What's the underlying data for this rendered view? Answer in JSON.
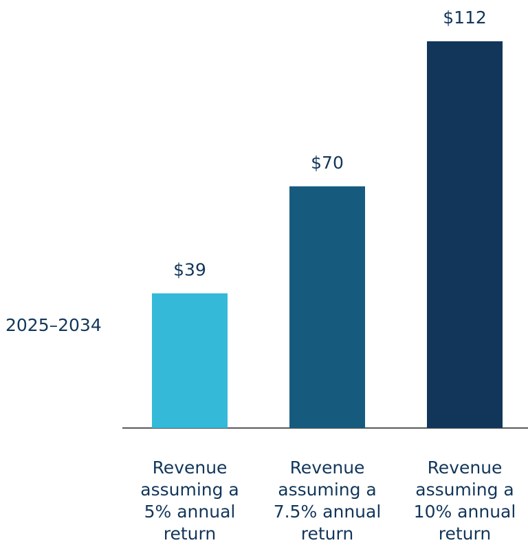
{
  "chart_data": {
    "type": "bar",
    "group_label": "2025–2034",
    "categories": [
      "Revenue assuming a 5% annual return",
      "Revenue assuming a 7.5% annual return",
      "Revenue assuming a 10% annual return"
    ],
    "values": [
      39,
      70,
      112
    ],
    "value_labels": [
      "$39",
      "$70",
      "$112"
    ],
    "colors": [
      "#34b9d9",
      "#165b7e",
      "#12365a"
    ]
  }
}
